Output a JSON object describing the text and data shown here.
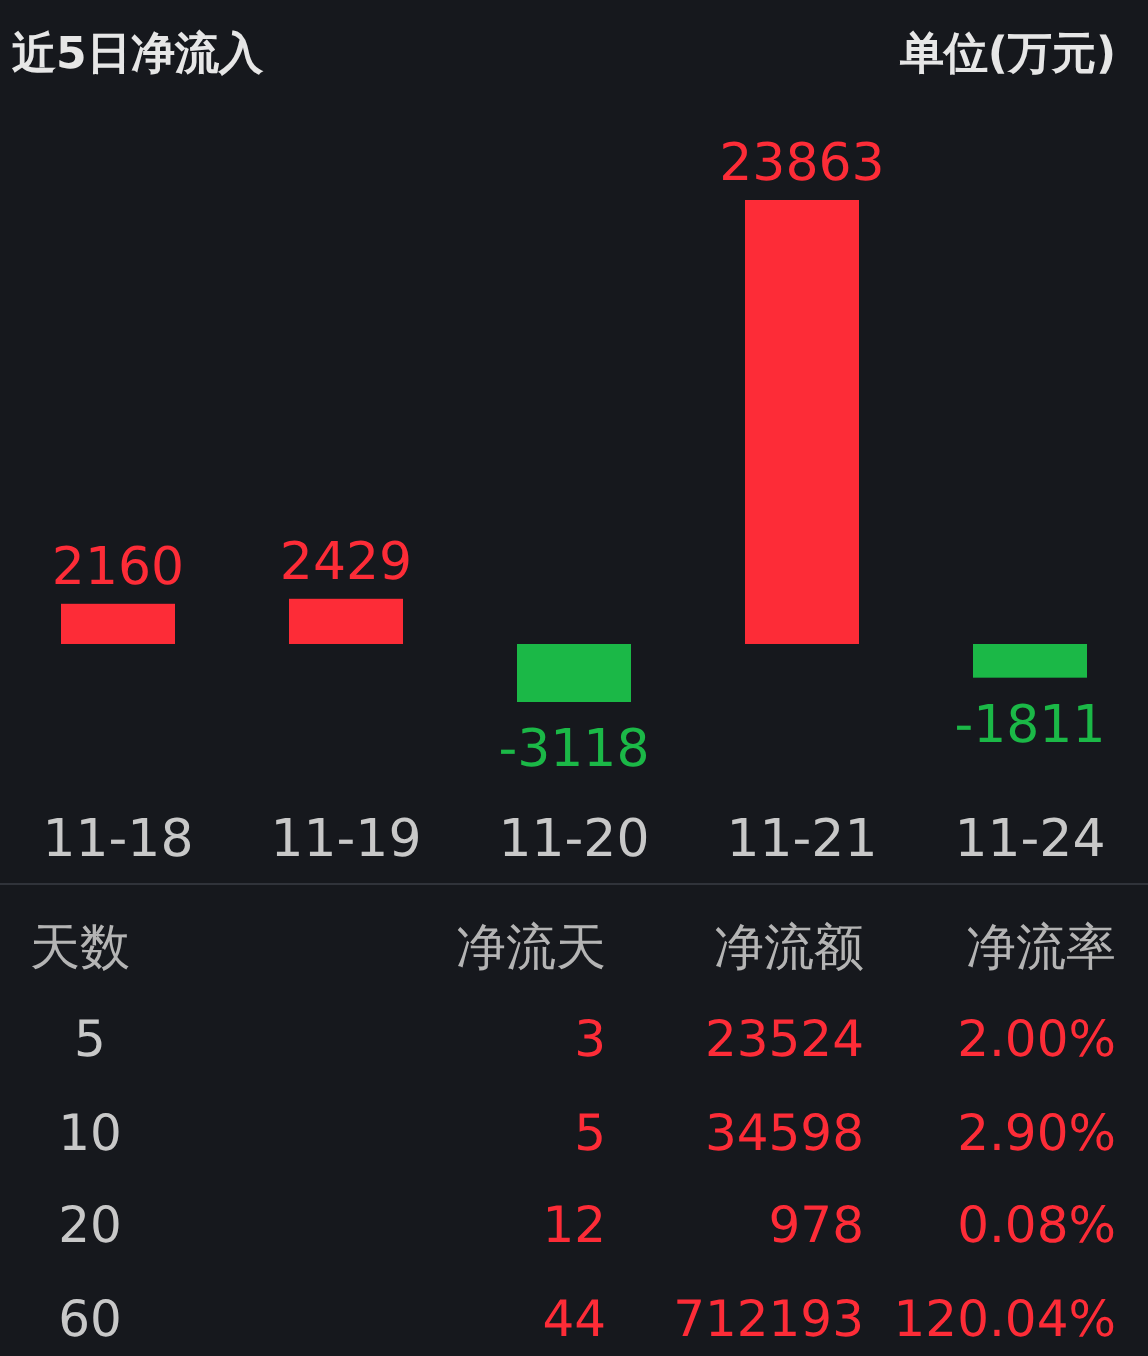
{
  "chart_data": {
    "type": "bar",
    "title": "近5日净流入",
    "subtitle": "单位(万元)",
    "categories": [
      "11-18",
      "11-19",
      "11-20",
      "11-21",
      "11-24"
    ],
    "values": [
      2160,
      2429,
      -3118,
      23863,
      -1811
    ],
    "colors": [
      "#fd2c37",
      "#fd2c37",
      "#1bb847",
      "#fd2c37",
      "#1bb847"
    ],
    "data_labels": true,
    "annotations": [
      "天数",
      "净流天",
      "净流额",
      "净流率",
      "5",
      "3",
      "23524",
      "2.00%",
      "10",
      "5",
      "34598",
      "2.90%",
      "20",
      "12",
      "978",
      "0.08%",
      "60",
      "44",
      "712193",
      "120.04%"
    ]
  }
}
